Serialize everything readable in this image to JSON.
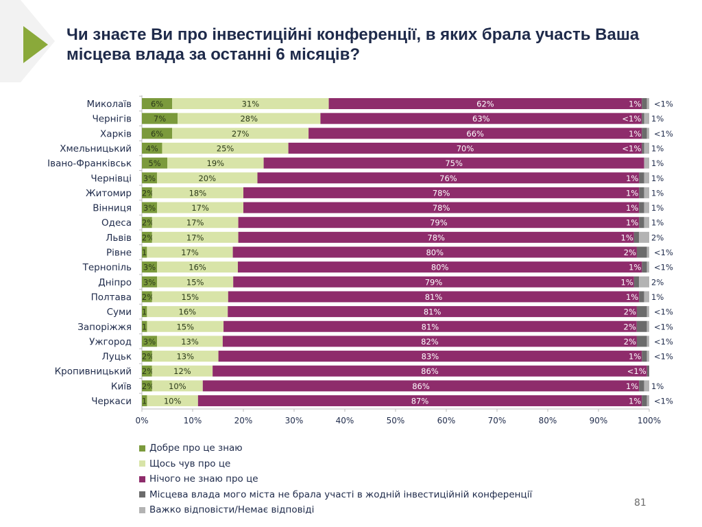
{
  "title": "Чи знаєте Ви про інвестиційні конференції, в яких брала участь Ваша місцева влада за останні 6 місяців?",
  "page_number": "81",
  "colors": {
    "accent": "#8aa93a",
    "title": "#1e2a4a"
  },
  "chart_data": {
    "type": "bar",
    "orientation": "horizontal",
    "stacked": true,
    "categories": [
      "Миколаїв",
      "Чернігів",
      "Харків",
      "Хмельницький",
      "Івано-Франківськ",
      "Чернівці",
      "Житомир",
      "Вінниця",
      "Одеса",
      "Львів",
      "Рівне",
      "Тернопіль",
      "Дніпро",
      "Полтава",
      "Суми",
      "Запоріжжя",
      "Ужгород",
      "Луцьк",
      "Кропивницький",
      "Київ",
      "Черкаси"
    ],
    "series": [
      {
        "name": "Добре про це знаю",
        "color": "#7b9a3c",
        "labels": [
          "6%",
          "7%",
          "6%",
          "4%",
          "5%",
          "3%",
          "2%",
          "3%",
          "2%",
          "2%",
          "1%",
          "3%",
          "3%",
          "2%",
          "1%",
          "1%",
          "3%",
          "2%",
          "2%",
          "2%",
          "1%"
        ]
      },
      {
        "name": "Щось чув про це",
        "color": "#d8e4a8",
        "labels": [
          "31%",
          "28%",
          "27%",
          "25%",
          "19%",
          "20%",
          "18%",
          "17%",
          "17%",
          "17%",
          "17%",
          "16%",
          "15%",
          "15%",
          "16%",
          "15%",
          "13%",
          "13%",
          "12%",
          "10%",
          "10%"
        ]
      },
      {
        "name": "Нічого не знаю про це",
        "color": "#8e2c6b",
        "labels": [
          "62%",
          "63%",
          "66%",
          "70%",
          "75%",
          "76%",
          "78%",
          "78%",
          "79%",
          "78%",
          "80%",
          "80%",
          "79%",
          "81%",
          "81%",
          "81%",
          "82%",
          "83%",
          "86%",
          "86%",
          "87%"
        ]
      },
      {
        "name": "Місцева влада мого міста не брала участі в жодній інвестиційній конференції",
        "color": "#6b6b6b",
        "labels": [
          "1%",
          "<1%",
          "1%",
          "<1%",
          null,
          "1%",
          "1%",
          "1%",
          "1%",
          "1%",
          "2%",
          "1%",
          "1%",
          "1%",
          "2%",
          "2%",
          "2%",
          "1%",
          "<1%",
          "1%",
          "1%"
        ]
      },
      {
        "name": "Важко відповісти/Немає відповіді",
        "color": "#b3b3b3",
        "labels": [
          "<1%",
          "1%",
          "<1%",
          "1%",
          "1%",
          "1%",
          "1%",
          "1%",
          "1%",
          "2%",
          "<1%",
          "<1%",
          "2%",
          "1%",
          "<1%",
          "<1%",
          "<1%",
          "<1%",
          null,
          "1%",
          "<1%"
        ]
      }
    ],
    "xlim": [
      0,
      100
    ],
    "xticks": [
      "0%",
      "10%",
      "20%",
      "30%",
      "40%",
      "50%",
      "60%",
      "70%",
      "80%",
      "90%",
      "100%"
    ],
    "legend": "bottom-left",
    "grid": false
  }
}
